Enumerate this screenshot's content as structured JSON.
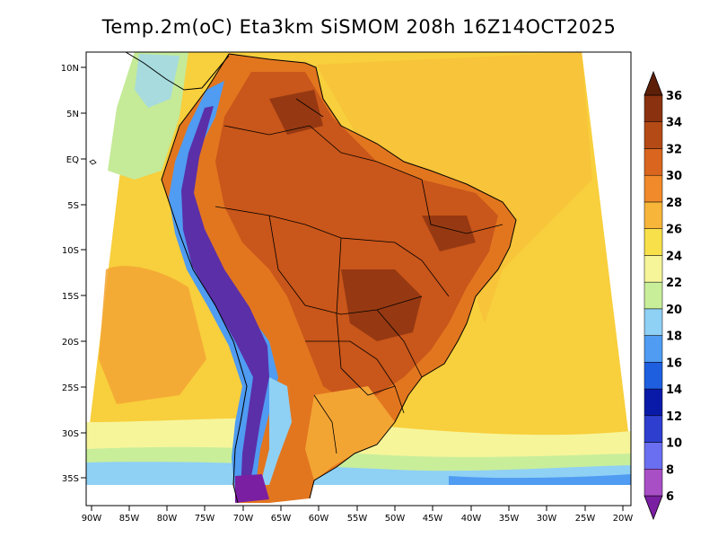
{
  "title": "Temp.2m(oC) Eta3km SiSMOM 208h 16Z14OCT2025",
  "lat_labels": [
    "10N",
    "5N",
    "EQ",
    "5S",
    "10S",
    "15S",
    "20S",
    "25S",
    "30S",
    "35S"
  ],
  "lon_labels": [
    "90W",
    "85W",
    "80W",
    "75W",
    "70W",
    "65W",
    "60W",
    "55W",
    "50W",
    "45W",
    "40W",
    "35W",
    "30W",
    "25W",
    "20W"
  ],
  "colorbar": {
    "labels": [
      "6",
      "8",
      "10",
      "12",
      "14",
      "16",
      "18",
      "20",
      "22",
      "24",
      "26",
      "28",
      "30",
      "32",
      "34",
      "36"
    ],
    "colors": [
      "#7b1fa2",
      "#a84fc6",
      "#6a6ef0",
      "#2e3fd0",
      "#0a1aa8",
      "#1e5fe0",
      "#4f9cf2",
      "#8fd0f5",
      "#c8ee9a",
      "#f6f59a",
      "#f7e04a",
      "#f7b53a",
      "#f08a2a",
      "#d9651e",
      "#b44a16",
      "#8a3210",
      "#5e1f08"
    ]
  }
}
